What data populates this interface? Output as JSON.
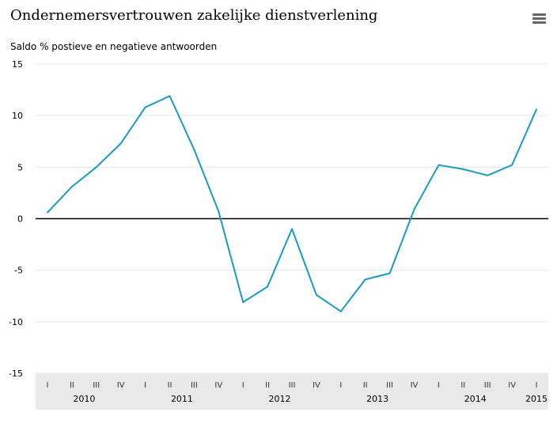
{
  "title": "Ondernemersvertrouwen zakelijke dienstverlening",
  "subtitle": "Saldo % postieve en negatieve antwoorden",
  "menu_icon": "hamburger-menu-icon",
  "colors": {
    "line": "#199bc2",
    "zero_line": "#000000",
    "grid": "#e6e6e6",
    "axis_band": "#e9e9e9"
  },
  "chart_data": {
    "type": "line",
    "title": "Ondernemersvertrouwen zakelijke dienstverlening",
    "ylabel": "Saldo % postieve en negatieve antwoorden",
    "xlabel": "",
    "ylim": [
      -15,
      15
    ],
    "yticks": [
      15,
      10,
      5,
      0,
      -5,
      -10,
      -15
    ],
    "grid": true,
    "legend": "none",
    "quarter_labels": [
      "I",
      "II",
      "III",
      "IV",
      "I",
      "II",
      "III",
      "IV",
      "I",
      "II",
      "III",
      "IV",
      "I",
      "II",
      "III",
      "IV",
      "I",
      "II",
      "III",
      "IV",
      "I"
    ],
    "years": [
      {
        "label": "2010",
        "start": 0,
        "count": 4
      },
      {
        "label": "2011",
        "start": 4,
        "count": 4
      },
      {
        "label": "2012",
        "start": 8,
        "count": 4
      },
      {
        "label": "2013",
        "start": 12,
        "count": 4
      },
      {
        "label": "2014",
        "start": 16,
        "count": 4
      },
      {
        "label": "2015",
        "start": 20,
        "count": 1
      }
    ],
    "series": [
      {
        "values": [
          0.6,
          3.1,
          5.0,
          7.3,
          10.8,
          11.9,
          6.7,
          0.7,
          -8.1,
          -6.6,
          -1.0,
          -7.4,
          -9.0,
          -5.9,
          -5.3,
          0.9,
          5.2,
          4.8,
          4.2,
          5.2,
          10.6
        ]
      }
    ]
  }
}
